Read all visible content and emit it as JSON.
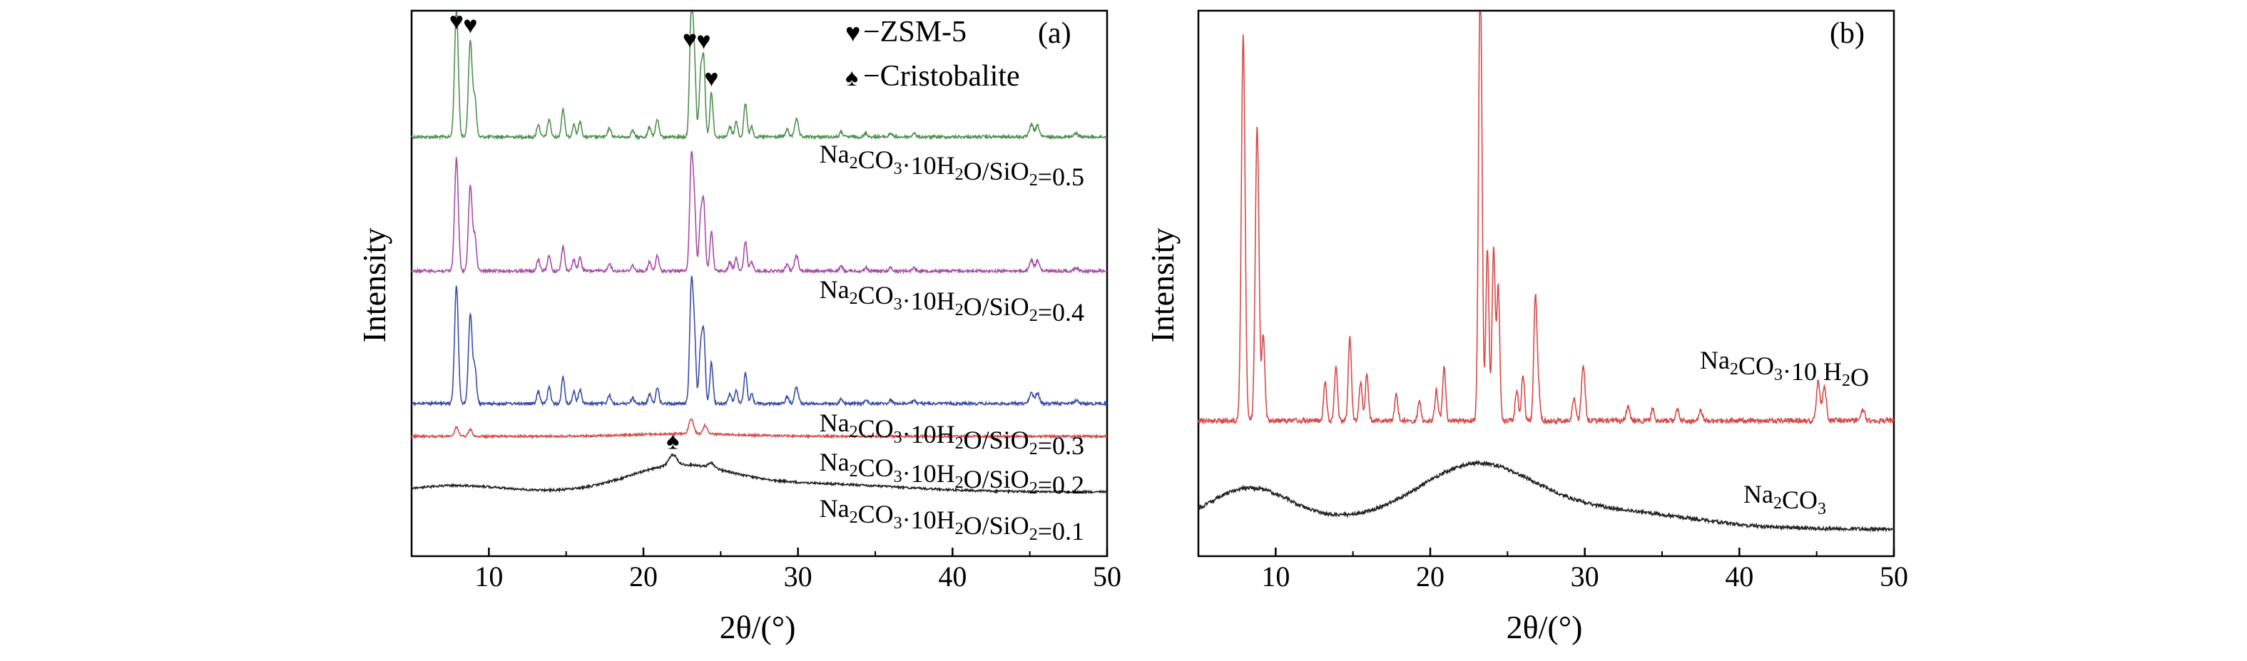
{
  "chart_data": [
    {
      "type": "line",
      "panel_label": "(a)",
      "xlabel": "2θ/(°)",
      "ylabel": "Intensity",
      "xlim": [
        5,
        50
      ],
      "xticks": [
        10,
        20,
        30,
        40,
        50
      ],
      "grid": false,
      "legend_position": "top-right",
      "legend": [
        {
          "symbol": "♥",
          "text": "−ZSM-5"
        },
        {
          "symbol": "♠",
          "text": "−Cristobalite"
        }
      ],
      "markers": [
        {
          "symbol": "♥",
          "x": 7.9,
          "series": "Na2CO3·10H2O/SiO2=0.5"
        },
        {
          "symbol": "♥",
          "x": 8.8,
          "series": "Na2CO3·10H2O/SiO2=0.5"
        },
        {
          "symbol": "♥",
          "x": 23.0,
          "series": "Na2CO3·10H2O/SiO2=0.5"
        },
        {
          "symbol": "♥",
          "x": 23.9,
          "series": "Na2CO3·10H2O/SiO2=0.5"
        },
        {
          "symbol": "♥",
          "x": 24.4,
          "series": "Na2CO3·10H2O/SiO2=0.5"
        },
        {
          "symbol": "♠",
          "x": 21.9,
          "series": "Na2CO3·10H2O/SiO2=0.1"
        }
      ],
      "series": [
        {
          "name": "Na2CO3·10H2O/SiO2=0.5",
          "label": {
            "base": "Na",
            "s1": "2",
            "mid": "CO",
            "s2": "3",
            "rest": "·10H",
            "s3": "2",
            "rest2": "O/SiO",
            "s4": "2",
            "tail": "=0.5"
          },
          "color": "#4f8f4f",
          "kind": "zsm5",
          "amplitude": 1.0
        },
        {
          "name": "Na2CO3·10H2O/SiO2=0.4",
          "label": {
            "base": "Na",
            "s1": "2",
            "mid": "CO",
            "s2": "3",
            "rest": "·10H",
            "s3": "2",
            "rest2": "O/SiO",
            "s4": "2",
            "tail": "=0.4"
          },
          "color": "#a64ca6",
          "kind": "zsm5",
          "amplitude": 0.93
        },
        {
          "name": "Na2CO3·10H2O/SiO2=0.3",
          "label": {
            "base": "Na",
            "s1": "2",
            "mid": "CO",
            "s2": "3",
            "rest": "·10H",
            "s3": "2",
            "rest2": "O/SiO",
            "s4": "2",
            "tail": "=0.3"
          },
          "color": "#3a4da6",
          "kind": "zsm5",
          "amplitude": 0.95
        },
        {
          "name": "Na2CO3·10H2O/SiO2=0.2",
          "label": {
            "base": "Na",
            "s1": "2",
            "mid": "CO",
            "s2": "3",
            "rest": "·10H",
            "s3": "2",
            "rest2": "O/SiO",
            "s4": "2",
            "tail": "=0.2"
          },
          "color": "#d64a4a",
          "kind": "weak",
          "amplitude": 1.0
        },
        {
          "name": "Na2CO3·10H2O/SiO2=0.1",
          "label": {
            "base": "Na",
            "s1": "2",
            "mid": "CO",
            "s2": "3",
            "rest": "·10H",
            "s3": "2",
            "rest2": "O/SiO",
            "s4": "2",
            "tail": "=0.1"
          },
          "color": "#222222",
          "kind": "amorphous",
          "amplitude": 1.0
        }
      ]
    },
    {
      "type": "line",
      "panel_label": "(b)",
      "xlabel": "2θ/(°)",
      "ylabel": "Intensity",
      "xlim": [
        5,
        50
      ],
      "xticks": [
        10,
        20,
        30,
        40,
        50
      ],
      "grid": false,
      "series": [
        {
          "name": "Na2CO3·10 H2O",
          "label": {
            "base": "Na",
            "s1": "2",
            "mid": "CO",
            "s2": "3",
            "rest": "·10 H",
            "s3": "2",
            "tail": "O"
          },
          "color": "#d64a4a",
          "kind": "zsm5",
          "amplitude": 1.0
        },
        {
          "name": "Na2CO3",
          "label": {
            "base": "Na",
            "s1": "2",
            "mid": "CO",
            "s2": "3"
          },
          "color": "#222222",
          "kind": "amorphous_b",
          "amplitude": 1.0
        }
      ]
    }
  ]
}
